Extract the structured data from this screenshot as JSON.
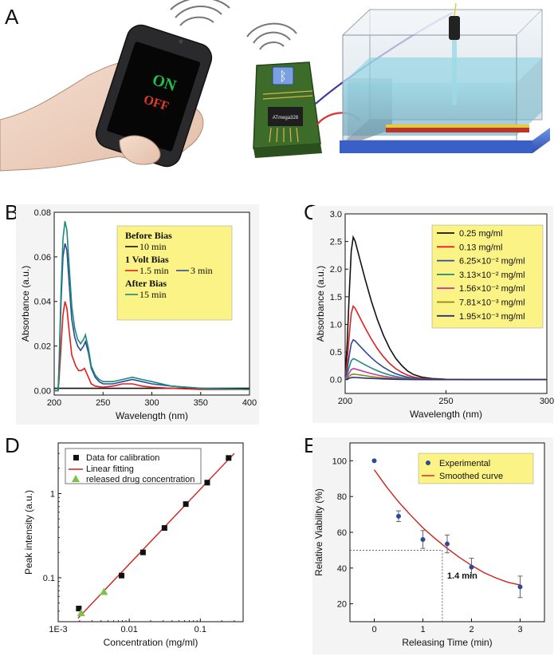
{
  "panel_labels": {
    "a": "A",
    "b": "B",
    "c": "C",
    "d": "D",
    "e": "E"
  },
  "illustration": {
    "phone_on": "ON",
    "phone_off": "OFF",
    "chip_label": "ATmega328",
    "colors": {
      "on": "#1fbf4a",
      "off": "#e23b2b",
      "board": "#3c6b2a",
      "water": "#58b7d0"
    }
  },
  "chart_data": [
    {
      "id": "B",
      "type": "line",
      "xlabel": "Wavelength (nm)",
      "ylabel": "Absorbance (a.u.)",
      "xlim": [
        200,
        400
      ],
      "ylim": [
        -0.002,
        0.08
      ],
      "xticks": [
        200,
        250,
        300,
        350,
        400
      ],
      "yticks": [
        0.0,
        0.02,
        0.04,
        0.06,
        0.08
      ],
      "xtick_labels": [
        "200",
        "250",
        "300",
        "350",
        "400"
      ],
      "ytick_labels": [
        "0.00",
        "0.02",
        "0.04",
        "0.06",
        "0.08"
      ],
      "legend_groups": [
        {
          "heading": "Before Bias",
          "entries": [
            {
              "label": "10 min",
              "series": "10min"
            }
          ]
        },
        {
          "heading": "1 Volt Bias",
          "entries": [
            {
              "label": "1.5 min",
              "series": "1.5min"
            },
            {
              "label": "3 min",
              "series": "3min"
            }
          ]
        },
        {
          "heading": "After Bias",
          "entries": [
            {
              "label": "15 min",
              "series": "15min"
            }
          ]
        }
      ],
      "series": [
        {
          "key": "10min",
          "name": "10 min",
          "color": "#111111",
          "x": [
            200,
            205,
            210,
            220,
            250,
            300,
            350,
            400
          ],
          "y": [
            0.001,
            0.001,
            0.001,
            0.001,
            0.001,
            0.001,
            0.001,
            0.001
          ]
        },
        {
          "key": "1.5min",
          "name": "1.5 min",
          "color": "#e02020",
          "x": [
            200,
            204,
            205,
            207,
            209,
            211,
            213,
            215,
            218,
            222,
            225,
            228,
            231,
            234,
            238,
            242,
            250,
            260,
            270,
            280,
            290,
            300,
            320,
            350,
            400
          ],
          "y": [
            0.0,
            0.0,
            0.005,
            0.02,
            0.034,
            0.04,
            0.037,
            0.028,
            0.016,
            0.011,
            0.009,
            0.009,
            0.01,
            0.007,
            0.003,
            0.002,
            0.0015,
            0.002,
            0.003,
            0.003,
            0.002,
            0.0015,
            0.001,
            0.0005,
            0.0005
          ]
        },
        {
          "key": "3min",
          "name": "3 min",
          "color": "#2d4a9a",
          "x": [
            200,
            204,
            205,
            207,
            209,
            211,
            213,
            215,
            218,
            221,
            224,
            227,
            230,
            232,
            235,
            238,
            242,
            246,
            250,
            260,
            270,
            280,
            290,
            300,
            320,
            350,
            400
          ],
          "y": [
            0.0,
            0.0,
            0.01,
            0.04,
            0.06,
            0.066,
            0.063,
            0.05,
            0.032,
            0.024,
            0.02,
            0.018,
            0.02,
            0.022,
            0.017,
            0.01,
            0.006,
            0.004,
            0.003,
            0.003,
            0.004,
            0.005,
            0.004,
            0.003,
            0.002,
            0.001,
            0.0005
          ]
        },
        {
          "key": "15min",
          "name": "15 min",
          "color": "#1a8c7a",
          "x": [
            200,
            204,
            205,
            207,
            209,
            211,
            213,
            215,
            218,
            221,
            224,
            227,
            230,
            232,
            235,
            238,
            242,
            246,
            250,
            260,
            270,
            280,
            290,
            300,
            320,
            350,
            400
          ],
          "y": [
            0.0,
            0.0,
            0.012,
            0.045,
            0.068,
            0.076,
            0.072,
            0.058,
            0.038,
            0.028,
            0.023,
            0.021,
            0.023,
            0.025,
            0.019,
            0.011,
            0.007,
            0.005,
            0.004,
            0.004,
            0.005,
            0.006,
            0.005,
            0.004,
            0.002,
            0.001,
            0.0005
          ]
        }
      ]
    },
    {
      "id": "C",
      "type": "line",
      "xlabel": "Wavelength (nm)",
      "ylabel": "Absorbance (a.u.)",
      "xlim": [
        200,
        300
      ],
      "ylim": [
        -0.25,
        3.0
      ],
      "xticks": [
        200,
        250,
        300
      ],
      "yticks": [
        0.0,
        0.5,
        1.0,
        1.5,
        2.0,
        2.5,
        3.0
      ],
      "xtick_labels": [
        "200",
        "250",
        "300"
      ],
      "ytick_labels": [
        "0.0",
        "0.5",
        "1.0",
        "1.5",
        "2.0",
        "2.5",
        "3.0"
      ],
      "legend": [
        {
          "label": "0.25 mg/ml",
          "color": "#111111"
        },
        {
          "label": "0.13 mg/ml",
          "color": "#e02020"
        },
        {
          "label": "6.25×10⁻² mg/ml",
          "color": "#2d4a9a"
        },
        {
          "label": "3.13×10⁻² mg/ml",
          "color": "#1a8c7a"
        },
        {
          "label": "1.56×10⁻² mg/ml",
          "color": "#c23d9a"
        },
        {
          "label": "7.81×10⁻³ mg/ml",
          "color": "#8a8a18"
        },
        {
          "label": "1.95×10⁻³ mg/ml",
          "color": "#27307a"
        }
      ],
      "series": [
        {
          "name": "0.25 mg/ml",
          "color": "#111111",
          "peak": 2.58
        },
        {
          "name": "0.13 mg/ml",
          "color": "#e02020",
          "peak": 1.33
        },
        {
          "name": "6.25×10⁻² mg/ml",
          "color": "#2d4a9a",
          "peak": 0.72
        },
        {
          "name": "3.13×10⁻² mg/ml",
          "color": "#1a8c7a",
          "peak": 0.38
        },
        {
          "name": "1.56×10⁻² mg/ml",
          "color": "#c23d9a",
          "peak": 0.2
        },
        {
          "name": "7.81×10⁻³ mg/ml",
          "color": "#8a8a18",
          "peak": 0.1
        },
        {
          "name": "1.95×10⁻³ mg/ml",
          "color": "#27307a",
          "peak": 0.04
        }
      ],
      "peak_wavelength": 204
    },
    {
      "id": "D",
      "type": "scatter",
      "xscale": "log",
      "yscale": "log",
      "xlabel": "Concentration (mg/ml)",
      "ylabel": "Peak intensity (a.u.)",
      "xlim": [
        0.001,
        0.4
      ],
      "ylim": [
        0.03,
        4.0
      ],
      "xticks": [
        0.001,
        0.01,
        0.1
      ],
      "yticks": [
        0.1,
        1
      ],
      "xtick_labels": [
        "1E-3",
        "0.01",
        "0.1"
      ],
      "ytick_labels": [
        "0.1",
        "1"
      ],
      "legend": {
        "calibration": "Data for calibration",
        "fit": "Linear fitting",
        "released": "released drug concentration"
      },
      "calibration": {
        "x": [
          0.00195,
          0.0078,
          0.0156,
          0.0313,
          0.0625,
          0.125,
          0.25
        ],
        "y": [
          0.043,
          0.106,
          0.2,
          0.39,
          0.75,
          1.35,
          2.65
        ]
      },
      "fit_line": {
        "x": [
          0.0019,
          0.3
        ],
        "y": [
          0.033,
          3.0
        ]
      },
      "released": {
        "x": [
          0.0021,
          0.0044
        ],
        "y": [
          0.038,
          0.068
        ]
      }
    },
    {
      "id": "E",
      "type": "scatter",
      "xlabel": "Releasing Time (min)",
      "ylabel": "Relative Viability (%)",
      "xlim": [
        -0.5,
        3.5
      ],
      "ylim": [
        10,
        110
      ],
      "xticks": [
        0,
        1,
        2,
        3
      ],
      "yticks": [
        20,
        40,
        60,
        80,
        100
      ],
      "xtick_labels": [
        "0",
        "1",
        "2",
        "3"
      ],
      "ytick_labels": [
        "20",
        "40",
        "60",
        "80",
        "100"
      ],
      "legend": {
        "experimental": "Experimental",
        "smoothed": "Smoothed curve"
      },
      "experimental": {
        "x": [
          0,
          0.5,
          1,
          1.5,
          2,
          3
        ],
        "y": [
          100,
          69,
          56,
          53.5,
          40.5,
          29.5
        ],
        "err": [
          0,
          3,
          5,
          5,
          5,
          6
        ]
      },
      "smoothed": {
        "x": [
          0,
          0.25,
          0.5,
          0.75,
          1,
          1.25,
          1.5,
          1.75,
          2,
          2.25,
          2.5,
          2.75,
          3
        ],
        "y": [
          95,
          85.5,
          77,
          69.5,
          62.5,
          56.5,
          51,
          46,
          41.5,
          37.5,
          34.5,
          32,
          30.5
        ]
      },
      "marker": {
        "x": 1.4,
        "y": 50,
        "label": "1.4 min"
      }
    }
  ]
}
